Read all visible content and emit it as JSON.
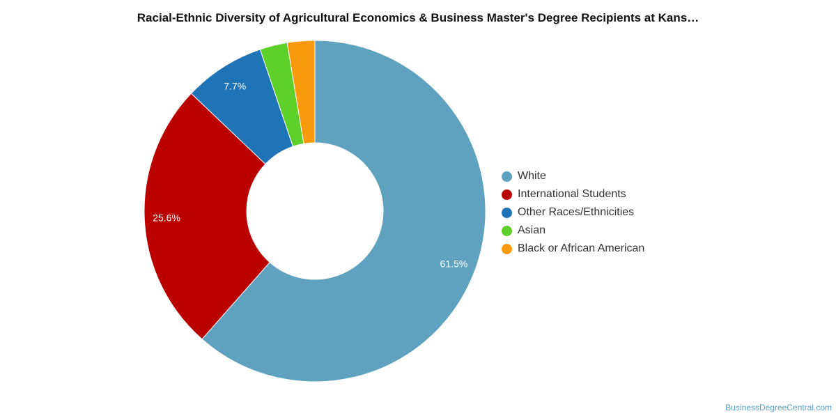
{
  "chart_data": {
    "type": "pie",
    "title": "Racial-Ethnic Diversity of Agricultural Economics & Business Master's Degree Recipients at Kans…",
    "donut": true,
    "categories": [
      "White",
      "International Students",
      "Other Races/Ethnicities",
      "Asian",
      "Black or African American"
    ],
    "values": [
      61.5,
      25.6,
      7.7,
      2.6,
      2.6
    ],
    "data_labels": [
      "61.5%",
      "25.6%",
      "7.7%",
      "",
      ""
    ],
    "colors": [
      "#5ea2c0",
      "#bb0000",
      "#1f73b7",
      "#5fcf2a",
      "#f89a0b"
    ],
    "legend_position": "right"
  },
  "watermark": "BusinessDegreeCentral.com"
}
